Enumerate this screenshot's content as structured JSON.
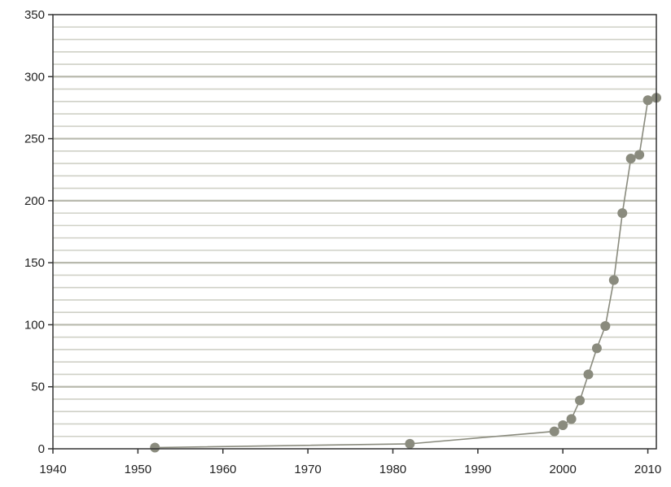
{
  "chart_data": {
    "type": "line",
    "title": "",
    "xlabel": "",
    "ylabel": "",
    "xlim": [
      1940,
      2011
    ],
    "ylim": [
      0,
      350
    ],
    "grid": true,
    "x_ticks": [
      {
        "value": 1940,
        "label": "1940"
      },
      {
        "value": 1950,
        "label": "1950"
      },
      {
        "value": 1960,
        "label": "1960"
      },
      {
        "value": 1970,
        "label": "1970"
      },
      {
        "value": 1980,
        "label": "1980"
      },
      {
        "value": 1990,
        "label": "1990"
      },
      {
        "value": 2000,
        "label": "2000"
      },
      {
        "value": 2010,
        "label": "2010"
      }
    ],
    "y_ticks": [
      {
        "value": 0,
        "label": "0"
      },
      {
        "value": 50,
        "label": "50"
      },
      {
        "value": 100,
        "label": "100"
      },
      {
        "value": 150,
        "label": "150"
      },
      {
        "value": 200,
        "label": "200"
      },
      {
        "value": 250,
        "label": "250"
      },
      {
        "value": 300,
        "label": "300"
      },
      {
        "value": 350,
        "label": "350"
      }
    ],
    "series": [
      {
        "color": "#8a8b7e",
        "points": [
          {
            "x": 1952,
            "y": 1
          },
          {
            "x": 1982,
            "y": 4
          },
          {
            "x": 1999,
            "y": 14
          },
          {
            "x": 2000,
            "y": 19
          },
          {
            "x": 2001,
            "y": 24
          },
          {
            "x": 2002,
            "y": 39
          },
          {
            "x": 2003,
            "y": 60
          },
          {
            "x": 2004,
            "y": 81
          },
          {
            "x": 2005,
            "y": 99
          },
          {
            "x": 2006,
            "y": 136
          },
          {
            "x": 2007,
            "y": 190
          },
          {
            "x": 2008,
            "y": 234
          },
          {
            "x": 2009,
            "y": 237
          },
          {
            "x": 2010,
            "y": 281
          },
          {
            "x": 2011,
            "y": 283
          }
        ]
      }
    ]
  }
}
